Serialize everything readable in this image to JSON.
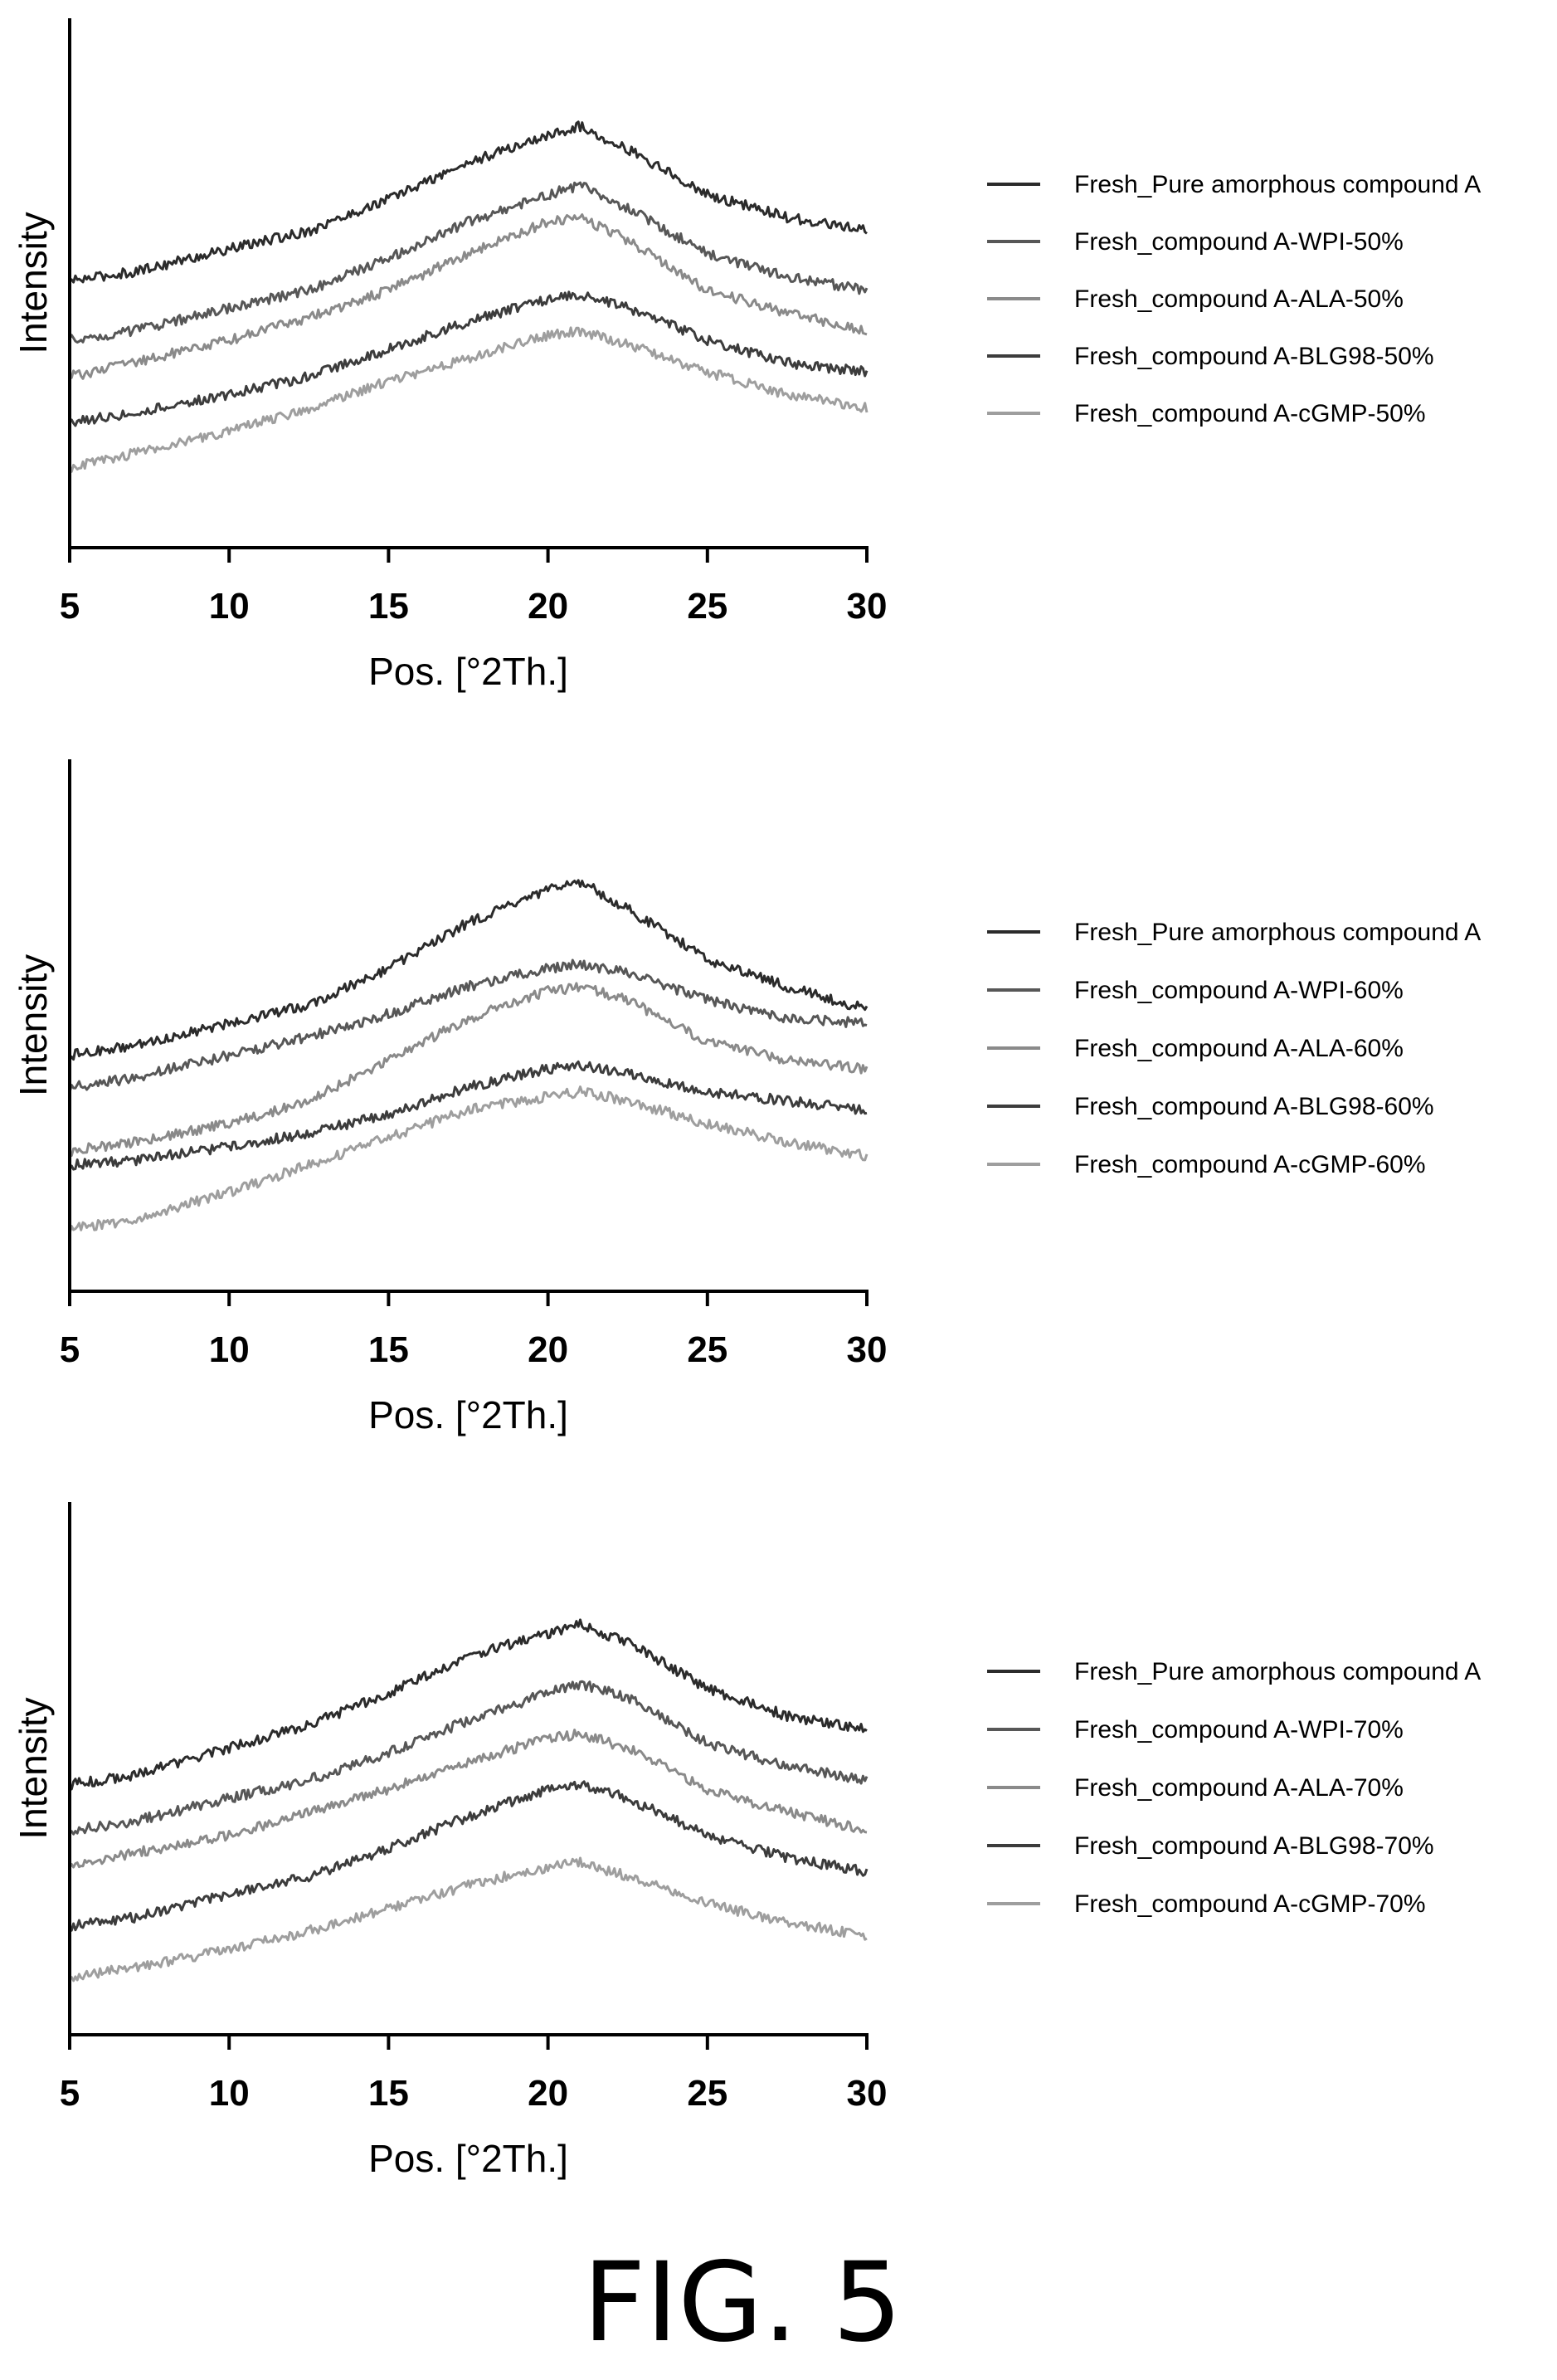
{
  "figure_caption": "FIG. 5",
  "colors": {
    "axis": "#000000",
    "series": [
      "#2b2b2b",
      "#575757",
      "#8a8a8a",
      "#3c3c3c",
      "#9e9e9e"
    ]
  },
  "chart_data": [
    {
      "type": "line",
      "xlabel": "Pos. [°2Th.]",
      "ylabel": "Intensity",
      "xlim": [
        5,
        30
      ],
      "xticks": [
        "5",
        "10",
        "15",
        "20",
        "25",
        "30"
      ],
      "yticks_shown": false,
      "grid": false,
      "legend_position": "right",
      "y_unit": "relative intensity (stacked, unlabeled axis)",
      "series": [
        {
          "name": "Fresh_Pure amorphous compound  A",
          "x": [
            5,
            7,
            10,
            12.5,
            15,
            17.5,
            20,
            21,
            22.5,
            25,
            27.5,
            30
          ],
          "y": [
            55,
            57,
            62,
            66,
            73,
            81,
            87,
            89,
            84,
            74,
            69,
            66
          ]
        },
        {
          "name": "Fresh_compound A-WPI-50%",
          "x": [
            5,
            7,
            10,
            12.5,
            15,
            17.5,
            20,
            21,
            22.5,
            25,
            27.5,
            30
          ],
          "y": [
            42,
            44,
            49,
            53,
            60,
            68,
            74,
            76,
            71,
            61,
            56,
            53
          ]
        },
        {
          "name": "Fresh_compound A-ALA-50%",
          "x": [
            5,
            7,
            10,
            12.5,
            15,
            17.5,
            20,
            21,
            22.5,
            25,
            27.5,
            30
          ],
          "y": [
            34,
            37,
            42,
            47,
            53,
            61,
            68,
            69,
            64,
            53,
            48,
            44
          ]
        },
        {
          "name": "Fresh_compound A-BLG98-50%",
          "x": [
            5,
            7,
            10,
            12.5,
            15,
            17.5,
            20,
            21,
            22.5,
            25,
            27.5,
            30
          ],
          "y": [
            24,
            26,
            30,
            34,
            40,
            46,
            51,
            52,
            49,
            42,
            37,
            35
          ]
        },
        {
          "name": "Fresh_compound A-cGMP-50%",
          "x": [
            5,
            7,
            10,
            12.5,
            15,
            17.5,
            20,
            21,
            22.5,
            25,
            27.5,
            30
          ],
          "y": [
            14,
            17,
            22,
            27,
            33,
            38,
            43,
            44,
            41,
            35,
            30,
            27
          ]
        }
      ]
    },
    {
      "type": "line",
      "xlabel": "Pos. [°2Th.]",
      "ylabel": "Intensity",
      "xlim": [
        5,
        30
      ],
      "xticks": [
        "5",
        "10",
        "15",
        "20",
        "25",
        "30"
      ],
      "yticks_shown": false,
      "grid": false,
      "legend_position": "right",
      "y_unit": "relative intensity (stacked, unlabeled axis)",
      "series": [
        {
          "name": "Fresh_Pure amorphous compound A",
          "x": [
            5,
            7,
            10,
            12.5,
            15,
            17.5,
            20,
            21,
            22.5,
            25,
            27.5,
            30
          ],
          "y": [
            48,
            50,
            55,
            59,
            67,
            77,
            84,
            86,
            80,
            69,
            63,
            58
          ]
        },
        {
          "name": "Fresh_compound A-WPI-60%",
          "x": [
            5,
            7,
            10,
            12.5,
            15,
            17.5,
            20,
            21,
            22.5,
            25,
            27.5,
            30
          ],
          "y": [
            41,
            43,
            48,
            52,
            57,
            63,
            67,
            68,
            66,
            60,
            56,
            55
          ]
        },
        {
          "name": "Fresh_compound A-ALA-60%",
          "x": [
            5,
            7,
            10,
            12.5,
            15,
            17.5,
            20,
            21,
            22.5,
            25,
            27.5,
            30
          ],
          "y": [
            27,
            29,
            33,
            38,
            47,
            56,
            62,
            63,
            60,
            51,
            47,
            45
          ]
        },
        {
          "name": "Fresh_compound A-BLG98-60%",
          "x": [
            5,
            7,
            10,
            12.5,
            15,
            17.5,
            20,
            21,
            22.5,
            25,
            27.5,
            30
          ],
          "y": [
            24,
            25,
            28,
            31,
            35,
            41,
            45,
            46,
            44,
            40,
            38,
            36
          ]
        },
        {
          "name": "Fresh_compound A-cGMP-60%",
          "x": [
            5,
            7,
            10,
            12.5,
            15,
            17.5,
            20,
            21,
            22.5,
            25,
            27.5,
            30
          ],
          "y": [
            10,
            12,
            18,
            24,
            30,
            36,
            39,
            40,
            38,
            33,
            29,
            26
          ]
        }
      ]
    },
    {
      "type": "line",
      "xlabel": "Pos. [°2Th.]",
      "ylabel": "Intensity",
      "xlim": [
        5,
        30
      ],
      "xticks": [
        "5",
        "10",
        "15",
        "20",
        "25",
        "30"
      ],
      "yticks_shown": false,
      "grid": false,
      "legend_position": "right",
      "y_unit": "relative intensity (stacked, unlabeled axis)",
      "series": [
        {
          "name": "Fresh_Pure amorphous compound A",
          "x": [
            5,
            7,
            10,
            12.5,
            15,
            17.5,
            20,
            21,
            22.5,
            25,
            27.5,
            30
          ],
          "y": [
            51,
            53,
            59,
            64,
            71,
            79,
            84,
            86,
            82,
            72,
            66,
            63
          ]
        },
        {
          "name": "Fresh_compound A-WPI-70%",
          "x": [
            5,
            7,
            10,
            12.5,
            15,
            17.5,
            20,
            21,
            22.5,
            25,
            27.5,
            30
          ],
          "y": [
            41,
            43,
            48,
            52,
            58,
            65,
            71,
            73,
            70,
            60,
            55,
            52
          ]
        },
        {
          "name": "Fresh_compound A-ALA-70%",
          "x": [
            5,
            7,
            10,
            12.5,
            15,
            17.5,
            20,
            21,
            22.5,
            25,
            27.5,
            30
          ],
          "y": [
            33,
            36,
            40,
            45,
            50,
            56,
            61,
            62,
            59,
            50,
            45,
            41
          ]
        },
        {
          "name": "Fresh_compound A-BLG98-70%",
          "x": [
            5,
            7,
            10,
            12.5,
            15,
            17.5,
            20,
            21,
            22.5,
            25,
            27.5,
            30
          ],
          "y": [
            20,
            22,
            27,
            31,
            37,
            44,
            50,
            51,
            48,
            40,
            35,
            32
          ]
        },
        {
          "name": "Fresh_compound A-cGMP-70%",
          "x": [
            5,
            7,
            10,
            12.5,
            15,
            17.5,
            20,
            21,
            22.5,
            25,
            27.5,
            30
          ],
          "y": [
            9,
            11,
            15,
            19,
            24,
            29,
            33,
            34,
            31,
            25,
            21,
            18
          ]
        }
      ]
    }
  ]
}
